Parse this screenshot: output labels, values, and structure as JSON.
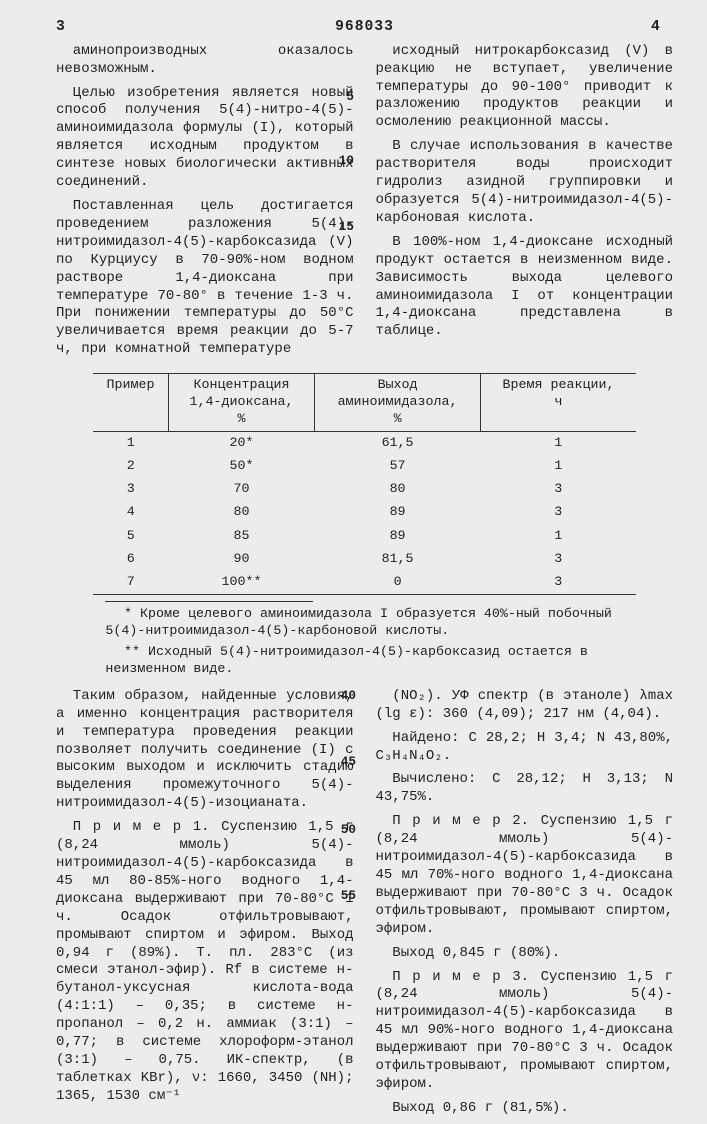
{
  "header": {
    "page_left": "3",
    "doc_number": "968033",
    "page_right": "4"
  },
  "col3": {
    "p1": "аминопроизводных оказалось невозможным.",
    "p2": "Целью изобретения является новый способ получения 5(4)-нитро-4(5)-аминоимидазола формулы (I), который является исходным продуктом в синтезе новых биологически активных соединений.",
    "p3": "Поставленная цель достигается проведением разложения 5(4)-нитроимидазол-4(5)-карбоксазида (V) по Курциусу в 70-90%-ном водном растворе 1,4-диоксана при температуре 70-80° в течение 1-3 ч. При понижении температуры до 50°C увеличивается время реакции до 5-7 ч, при комнатной температуре"
  },
  "col4": {
    "p1": "исходный нитрокарбоксазид (V) в реакцию не вступает, увеличение температуры до 90-100° приводит к разложению продуктов реакции и осмолению реакционной массы.",
    "p2": "В случае использования в качестве растворителя воды происходит гидролиз азидной группировки и образуется 5(4)-нитроимидазол-4(5)-карбоновая кислота.",
    "p3": "В 100%-ном 1,4-диоксане исходный продукт остается в неизменном виде. Зависимость выхода целевого аминоимидазола I от концентрации 1,4-диоксана представлена в таблице."
  },
  "line_nums_top": {
    "n5": "5",
    "n10": "10",
    "n15": "15"
  },
  "table": {
    "h1a": "Пример",
    "h1b": "",
    "h2a": "Концентрация",
    "h2b": "1,4-диоксана,",
    "h2c": "%",
    "h3a": "Выход",
    "h3b": "аминоимидазола,",
    "h3c": "%",
    "h4a": "Время реакции,",
    "h4b": "ч",
    "rows": [
      {
        "c1": "1",
        "c2": "20*",
        "c3": "61,5",
        "c4": "1"
      },
      {
        "c1": "2",
        "c2": "50*",
        "c3": "57",
        "c4": "1"
      },
      {
        "c1": "3",
        "c2": "70",
        "c3": "80",
        "c4": "3"
      },
      {
        "c1": "4",
        "c2": "80",
        "c3": "89",
        "c4": "3"
      },
      {
        "c1": "5",
        "c2": "85",
        "c3": "89",
        "c4": "1"
      },
      {
        "c1": "6",
        "c2": "90",
        "c3": "81,5",
        "c4": "3"
      },
      {
        "c1": "7",
        "c2": "100**",
        "c3": "0",
        "c4": "3"
      }
    ]
  },
  "footnotes": {
    "f1": "* Кроме целевого аминоимидазола I образуется 40%-ный побочный 5(4)-нитроимидазол-4(5)-карбоновой кислоты.",
    "f2": "** Исходный 5(4)-нитроимидазол-4(5)-карбоксазид остается в неизменном виде."
  },
  "colL": {
    "p1": "Таким образом, найденные условия, а именно концентрация растворителя и температура проведения реакции позволяет получить соединение (I) с высоким выходом и исключить стадию выделения промежуточного 5(4)-нитроимидазол-4(5)-изоцианата.",
    "p2": "П р и м е р 1. Суспензию 1,5 г (8,24 ммоль) 5(4)-нитроимидазол-4(5)-карбоксазида в 45 мл 80-85%-ного водного 1,4-диоксана выдерживают при 70-80°C 1 ч. Осадок отфильтровывают, промывают спиртом и эфиром. Выход 0,94 г (89%). Т. пл. 283°C (из смеси этанол-эфир). Rf в системе н-бутанол-уксусная кислота-вода (4:1:1) – 0,35; в системе н-пропанол – 0,2 н. аммиак (3:1) – 0,77; в системе хлороформ-этанол (3:1) – 0,75. ИК-спектр, (в таблетках KBr), ν: 1660, 3450 (NH); 1365, 1530 см⁻¹"
  },
  "colR": {
    "p1": "(NO₂). УФ спектр (в этаноле) λmax (lg ε): 360 (4,09); 217 нм (4,04).",
    "p2": "Найдено: C 28,2; H 3,4; N 43,80%, C₃H₄N₄O₂.",
    "p3": "Вычислено: C 28,12; H 3,13; N 43,75%.",
    "p4": "П р и м е р 2. Суспензию 1,5 г (8,24 ммоль) 5(4)-нитроимидазол-4(5)-карбоксазида в 45 мл 70%-ного водного 1,4-диоксана выдерживают при 70-80°C 3 ч. Осадок отфильтровывают, промывают спиртом, эфиром.",
    "p5": "Выход 0,845 г (80%).",
    "p6": "П р и м е р 3. Суспензию 1,5 г (8,24 ммоль) 5(4)-нитроимидазол-4(5)-карбоксазида в 45 мл 90%-ного водного 1,4-диоксана выдерживают при 70-80°C 3 ч. Осадок отфильтровывают, промывают спиртом, эфиром.",
    "p7": "Выход 0,86 г (81,5%)."
  },
  "line_nums_bot": {
    "n40": "40",
    "n45": "45",
    "n50": "50",
    "n55": "55"
  }
}
